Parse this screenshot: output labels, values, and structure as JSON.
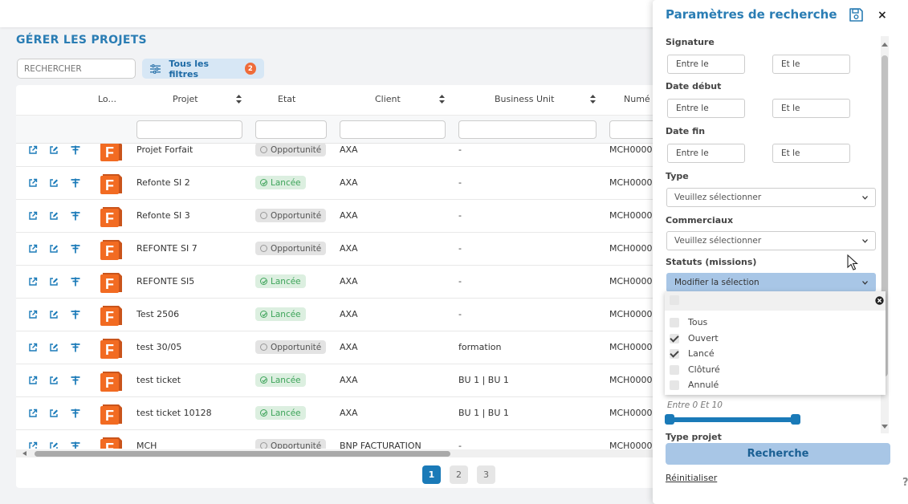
{
  "page": {
    "title": "GÉRER LES PROJETS"
  },
  "toolbar": {
    "search_placeholder": "RECHERCHER",
    "filters_label": "Tous les filtres",
    "filters_count": "2"
  },
  "table": {
    "columns": [
      "Lo...",
      "Projet",
      "Etat",
      "Client",
      "Business Unit",
      "Numé"
    ],
    "rows": [
      {
        "projet": "Projet Forfait",
        "etat": "Opportunité",
        "etat_type": "opp",
        "client": "AXA",
        "bu": "-",
        "numero": "MCH0000"
      },
      {
        "projet": "Refonte SI 2",
        "etat": "Lancée",
        "etat_type": "lan",
        "client": "AXA",
        "bu": "-",
        "numero": "MCH0000"
      },
      {
        "projet": "Refonte SI 3",
        "etat": "Opportunité",
        "etat_type": "opp",
        "client": "AXA",
        "bu": "-",
        "numero": "MCH0000"
      },
      {
        "projet": "REFONTE SI 7",
        "etat": "Opportunité",
        "etat_type": "opp",
        "client": "AXA",
        "bu": "-",
        "numero": "MCH0000"
      },
      {
        "projet": "REFONTE SI5",
        "etat": "Lancée",
        "etat_type": "lan",
        "client": "AXA",
        "bu": "-",
        "numero": "MCH0000"
      },
      {
        "projet": "Test 2506",
        "etat": "Lancée",
        "etat_type": "lan",
        "client": "AXA",
        "bu": "-",
        "numero": "MCH0000"
      },
      {
        "projet": "test 30/05",
        "etat": "Opportunité",
        "etat_type": "opp",
        "client": "AXA",
        "bu": "formation",
        "numero": "MCH0000"
      },
      {
        "projet": "test ticket",
        "etat": "Lancée",
        "etat_type": "lan",
        "client": "AXA",
        "bu": "BU 1 | BU 1",
        "numero": "MCH0000"
      },
      {
        "projet": "test ticket 10128",
        "etat": "Lancée",
        "etat_type": "lan",
        "client": "AXA",
        "bu": "BU 1 | BU 1",
        "numero": "MCH0000"
      },
      {
        "projet": "MCH",
        "etat": "Opportunité",
        "etat_type": "opp",
        "client": "BNP FACTURATION",
        "bu": "-",
        "numero": "MCH0000"
      }
    ]
  },
  "pagination": {
    "pages": [
      "1",
      "2",
      "3"
    ],
    "current": "1"
  },
  "panel": {
    "title": "Paramètres de recherche",
    "signature_label": "Signature",
    "date_debut_label": "Date début",
    "date_fin_label": "Date fin",
    "between_placeholder": "Entre le",
    "and_placeholder": "Et le",
    "type_label": "Type",
    "type_value": "Veuillez sélectionner",
    "commerciaux_label": "Commerciaux",
    "commerciaux_value": "Veuillez sélectionner",
    "statuts_label": "Statuts (missions)",
    "statuts_value": "Modifier la sélection",
    "statuts_options": [
      {
        "label": "Tous",
        "checked": false
      },
      {
        "label": "Ouvert",
        "checked": true
      },
      {
        "label": "Lancé",
        "checked": true
      },
      {
        "label": "Clôturé",
        "checked": false
      },
      {
        "label": "Annulé",
        "checked": false
      }
    ],
    "range_label": "Entre 0 Et 10",
    "range": {
      "min": 0,
      "max": 10
    },
    "cut_label": "Type projet",
    "search_button": "Recherche",
    "reset_link": "Réinitialiser"
  },
  "colors": {
    "accent": "#1a7ab8",
    "title_blue": "#2a7db4",
    "badge_orange": "#ef6c3a",
    "status_green": "#3ea45a",
    "logo_orange": "#f26b22"
  },
  "help": "?"
}
